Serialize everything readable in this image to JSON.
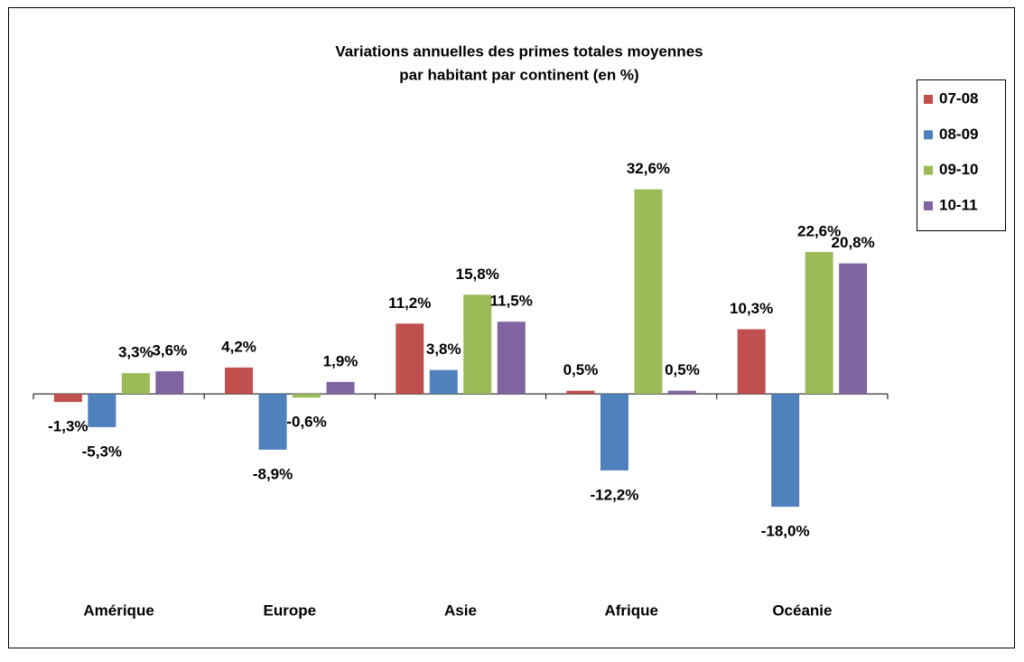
{
  "chart_data": {
    "type": "bar",
    "title": [
      "Variations annuelles des primes totales moyennes",
      "par habitant par continent (en %)"
    ],
    "categories": [
      "Amérique",
      "Europe",
      "Asie",
      "Afrique",
      "Océanie"
    ],
    "series": [
      {
        "name": "07-08",
        "color": "#c0504d",
        "values": [
          -1.3,
          4.2,
          11.2,
          0.5,
          10.3
        ],
        "value_labels": [
          "-1,3%",
          "4,2%",
          "11,2%",
          "0,5%",
          "10,3%"
        ]
      },
      {
        "name": "08-09",
        "color": "#4f81bd",
        "values": [
          -5.3,
          -8.9,
          3.8,
          -12.2,
          -18.0
        ],
        "value_labels": [
          "-5,3%",
          "-8,9%",
          "3,8%",
          "-12,2%",
          "-18,0%"
        ]
      },
      {
        "name": "09-10",
        "color": "#9bbb59",
        "values": [
          3.3,
          -0.6,
          15.8,
          32.6,
          22.6
        ],
        "value_labels": [
          "3,3%",
          "-0,6%",
          "15,8%",
          "32,6%",
          "22,6%"
        ]
      },
      {
        "name": "10-11",
        "color": "#8064a2",
        "values": [
          3.6,
          1.9,
          11.5,
          0.5,
          20.8
        ],
        "value_labels": [
          "3,6%",
          "1,9%",
          "11,5%",
          "0,5%",
          "20,8%"
        ]
      }
    ],
    "ylim": [
      -20,
      35
    ],
    "legend": "right"
  }
}
